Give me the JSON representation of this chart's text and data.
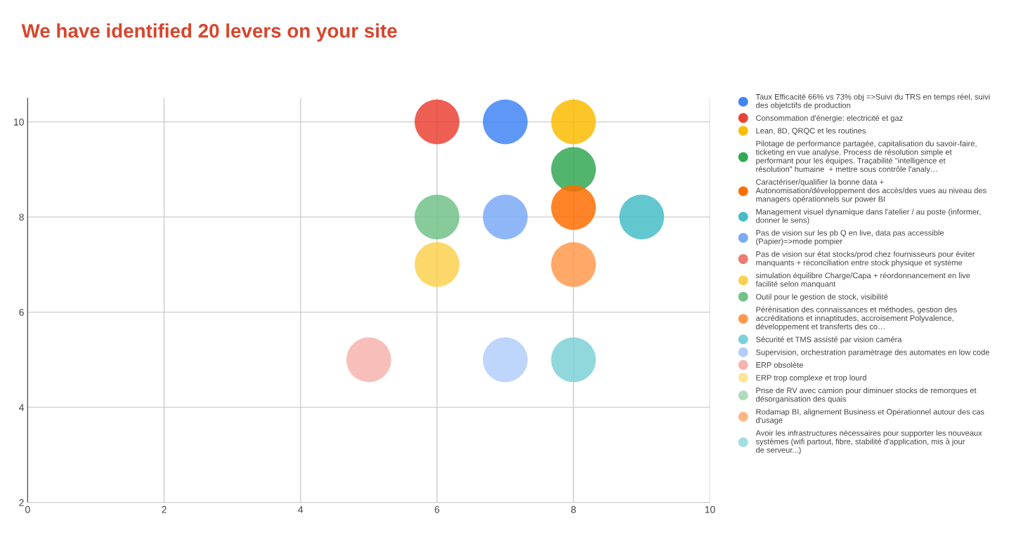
{
  "chart_data": {
    "type": "bubble",
    "title": "We have identified 20 levers on your site",
    "xlim": [
      0,
      10
    ],
    "xticks": [
      0,
      2,
      4,
      6,
      8,
      10
    ],
    "ylim": [
      2,
      10.5
    ],
    "yticks": [
      2,
      4,
      6,
      8,
      10
    ],
    "grid": true,
    "legend": "right",
    "marker": "circle",
    "series": [
      {
        "name": "Taux Efficacité 66% vs 73% obj =>Suivi du TRS en temps réel, suivi des objetctifs de production",
        "color": "#4285f4",
        "x": [
          7
        ],
        "values": [
          10
        ],
        "sizes": [
          1
        ]
      },
      {
        "name": "Consommation d'énergie: electricité et gaz",
        "color": "#ea4335",
        "x": [
          6
        ],
        "values": [
          10
        ],
        "sizes": [
          1
        ]
      },
      {
        "name": "Lean, 8D, QRQC et les routines",
        "color": "#fbbc04",
        "x": [
          8
        ],
        "values": [
          10
        ],
        "sizes": [
          1
        ]
      },
      {
        "name": "Pilotage de performance partagée, capitalisation du savoir-faire, ticketing en vue analyse. Process de résolution simple et performant pour les équipes. Traçabilité \"intelligence et résolution\" humaine  + mettre sous contrôle l'analy…",
        "color": "#34a853",
        "x": [
          8
        ],
        "values": [
          9
        ],
        "sizes": [
          1
        ]
      },
      {
        "name": "Caractériser/qualifier la bonne data + Autonomisation/développement des accès/des vues au niveau des managers opérationnels sur power BI",
        "color": "#ff6d01",
        "x": [
          8
        ],
        "values": [
          8.2
        ],
        "sizes": [
          1
        ]
      },
      {
        "name": "Management visuel dynamique dans l'atelier / au poste (informer, donner le sens)",
        "color": "#46bdc6",
        "x": [
          9
        ],
        "values": [
          8
        ],
        "sizes": [
          1
        ]
      },
      {
        "name": "Pas de vision sur les pb Q en live, data pas accessible (Papier)=>mode pompier",
        "color": "#7baaf7",
        "x": [
          7
        ],
        "values": [
          8
        ],
        "sizes": [
          1
        ]
      },
      {
        "name": "Pas de vision sur état stocks/prod chez fournisseurs pour éviter manquants + réconciliation entre stock physique et système",
        "color": "#f07b72"
      },
      {
        "name": "simulation équilibre Charge/Capa + réordonnancement en live facilité selon manquant",
        "color": "#fcd04f",
        "x": [
          6
        ],
        "values": [
          7
        ],
        "sizes": [
          1
        ]
      },
      {
        "name": "Outil pour le gestion de stock, visibilité",
        "color": "#71c287",
        "x": [
          6
        ],
        "values": [
          8
        ],
        "sizes": [
          1
        ]
      },
      {
        "name": "Pérénisation des connaissances et méthodes, gestion des accréditations et innaptitudes, accroisement Polyvalence, développement et transferts des co…",
        "color": "#ff994d",
        "x": [
          8
        ],
        "values": [
          7
        ],
        "sizes": [
          1
        ]
      },
      {
        "name": "Sécurité et TMS assisté par vision caméra",
        "color": "#7ed1d7",
        "x": [
          8
        ],
        "values": [
          5
        ],
        "sizes": [
          1
        ]
      },
      {
        "name": "Supervision, orchestration paramètrage des automates en low code",
        "color": "#b3cefb",
        "x": [
          7
        ],
        "values": [
          5
        ],
        "sizes": [
          1
        ]
      },
      {
        "name": "ERP obsolète",
        "color": "#f7b4ae",
        "x": [
          5
        ],
        "values": [
          5
        ],
        "sizes": [
          1
        ]
      },
      {
        "name": "ERP trop complexe et trop lourd",
        "color": "#fde49b"
      },
      {
        "name": "Prise de RV avec camion pour diminuer stocks de remorques et désorganisation des quais",
        "color": "#aedcba"
      },
      {
        "name": "Rodamap BI, alignement Business et Opérationnel autour des cas d'usage",
        "color": "#ffb685"
      },
      {
        "name": "Avoir les infrastructures nécessaires pour supporter les nouveaux systèmes (wifi partout, fibre, stabilité d'application, mis à jour de serveur...)",
        "color": "#a2dee2"
      }
    ]
  }
}
